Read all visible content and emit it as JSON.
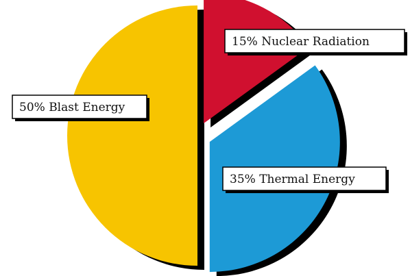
{
  "chart_data": {
    "type": "pie",
    "title": "",
    "slices": [
      {
        "label": "15% Nuclear Radiation",
        "value": 15,
        "color": "#d0102f",
        "exploded": true
      },
      {
        "label": "35% Thermal Energy",
        "value": 35,
        "color": "#1d9ad6",
        "exploded": true
      },
      {
        "label": "50% Blast Energy",
        "value": 50,
        "color": "#f7c400",
        "exploded": false
      }
    ],
    "shadow_color": "#000000",
    "legend": "none"
  }
}
